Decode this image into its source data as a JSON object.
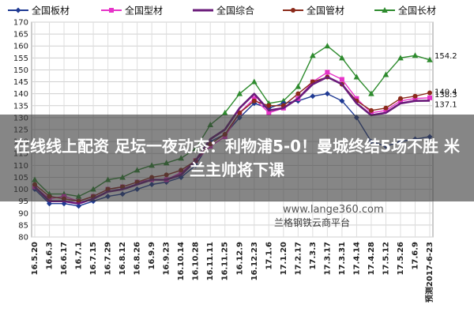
{
  "overlay": {
    "title": "在线线上配资 足坛一夜动态：利物浦5-0！曼城终结5场不胜 米兰主帅将下课"
  },
  "watermark": {
    "url": "www.lange360.com",
    "platform": "兰格钢铁云商平台"
  },
  "colors": {
    "plate": "#1f3a93",
    "section": "#e633c8",
    "composite": "#6a1b7a",
    "pipe": "#8b2a1a",
    "long": "#2e8b2e"
  },
  "chart_data": {
    "type": "line",
    "title": "",
    "xlabel": "",
    "ylabel": "",
    "ylim": [
      80,
      170
    ],
    "yticks": [
      80,
      85,
      90,
      95,
      100,
      105,
      110,
      115,
      120,
      125,
      130,
      135,
      140,
      145,
      150,
      155,
      160,
      165,
      170
    ],
    "grid": true,
    "legend_position": "top",
    "categories": [
      "16.5.20",
      "16.6.3",
      "16.6.17",
      "16.7.1",
      "16.7.15",
      "16.7.29",
      "16.8.12",
      "16.8.26",
      "16.9.9",
      "16.9.23",
      "16.10.14",
      "16.10.28",
      "16.11.11",
      "16.11.25",
      "16.12.9",
      "16.12.23",
      "17.1.6",
      "17.1.20",
      "17.2.17",
      "17.3.3",
      "17.3.17",
      "17.3.31",
      "17.4.14",
      "17.4.28",
      "17.5.12",
      "17.5.26",
      "17.6.9",
      "预测2017-6-23"
    ],
    "end_labels": [
      "154.2",
      "140.4",
      "138.3",
      "137.1"
    ],
    "series": [
      {
        "name": "全国板材",
        "color_key": "plate",
        "marker": "diamond",
        "values": [
          100,
          94,
          94,
          93,
          95,
          97,
          98,
          100,
          102,
          103,
          105,
          110,
          120,
          123,
          130,
          136,
          134,
          136,
          137,
          139,
          140,
          137,
          130,
          120,
          118,
          120,
          121,
          122
        ]
      },
      {
        "name": "全国型材",
        "color_key": "section",
        "marker": "square",
        "values": [
          101,
          96,
          97,
          95,
          97,
          100,
          101,
          103,
          104,
          104,
          107,
          112,
          118,
          122,
          132,
          138,
          132,
          134,
          138,
          145,
          149,
          146,
          138,
          132,
          133,
          137,
          138,
          138.3
        ]
      },
      {
        "name": "全国综合",
        "color_key": "composite",
        "marker": "none",
        "values": [
          101,
          95,
          95,
          94,
          96,
          99,
          100,
          102,
          104,
          104,
          106,
          112,
          121,
          125,
          134,
          140,
          133,
          134,
          138,
          144,
          147,
          144,
          136,
          131,
          132,
          136,
          137,
          137.1
        ]
      },
      {
        "name": "全国管材",
        "color_key": "pipe",
        "marker": "circle",
        "values": [
          102,
          97,
          96,
          95,
          97,
          100,
          101,
          103,
          105,
          106,
          108,
          112,
          119,
          123,
          132,
          137,
          135,
          135,
          140,
          145,
          147,
          144,
          137,
          133,
          134,
          138,
          139,
          140.4
        ]
      },
      {
        "name": "全国长材",
        "color_key": "long",
        "marker": "triangle",
        "values": [
          104,
          98,
          98,
          97,
          100,
          104,
          105,
          108,
          110,
          111,
          113,
          117,
          127,
          132,
          140,
          145,
          136,
          137,
          143,
          156,
          160,
          155,
          147,
          140,
          148,
          155,
          156,
          154.2
        ]
      }
    ]
  }
}
